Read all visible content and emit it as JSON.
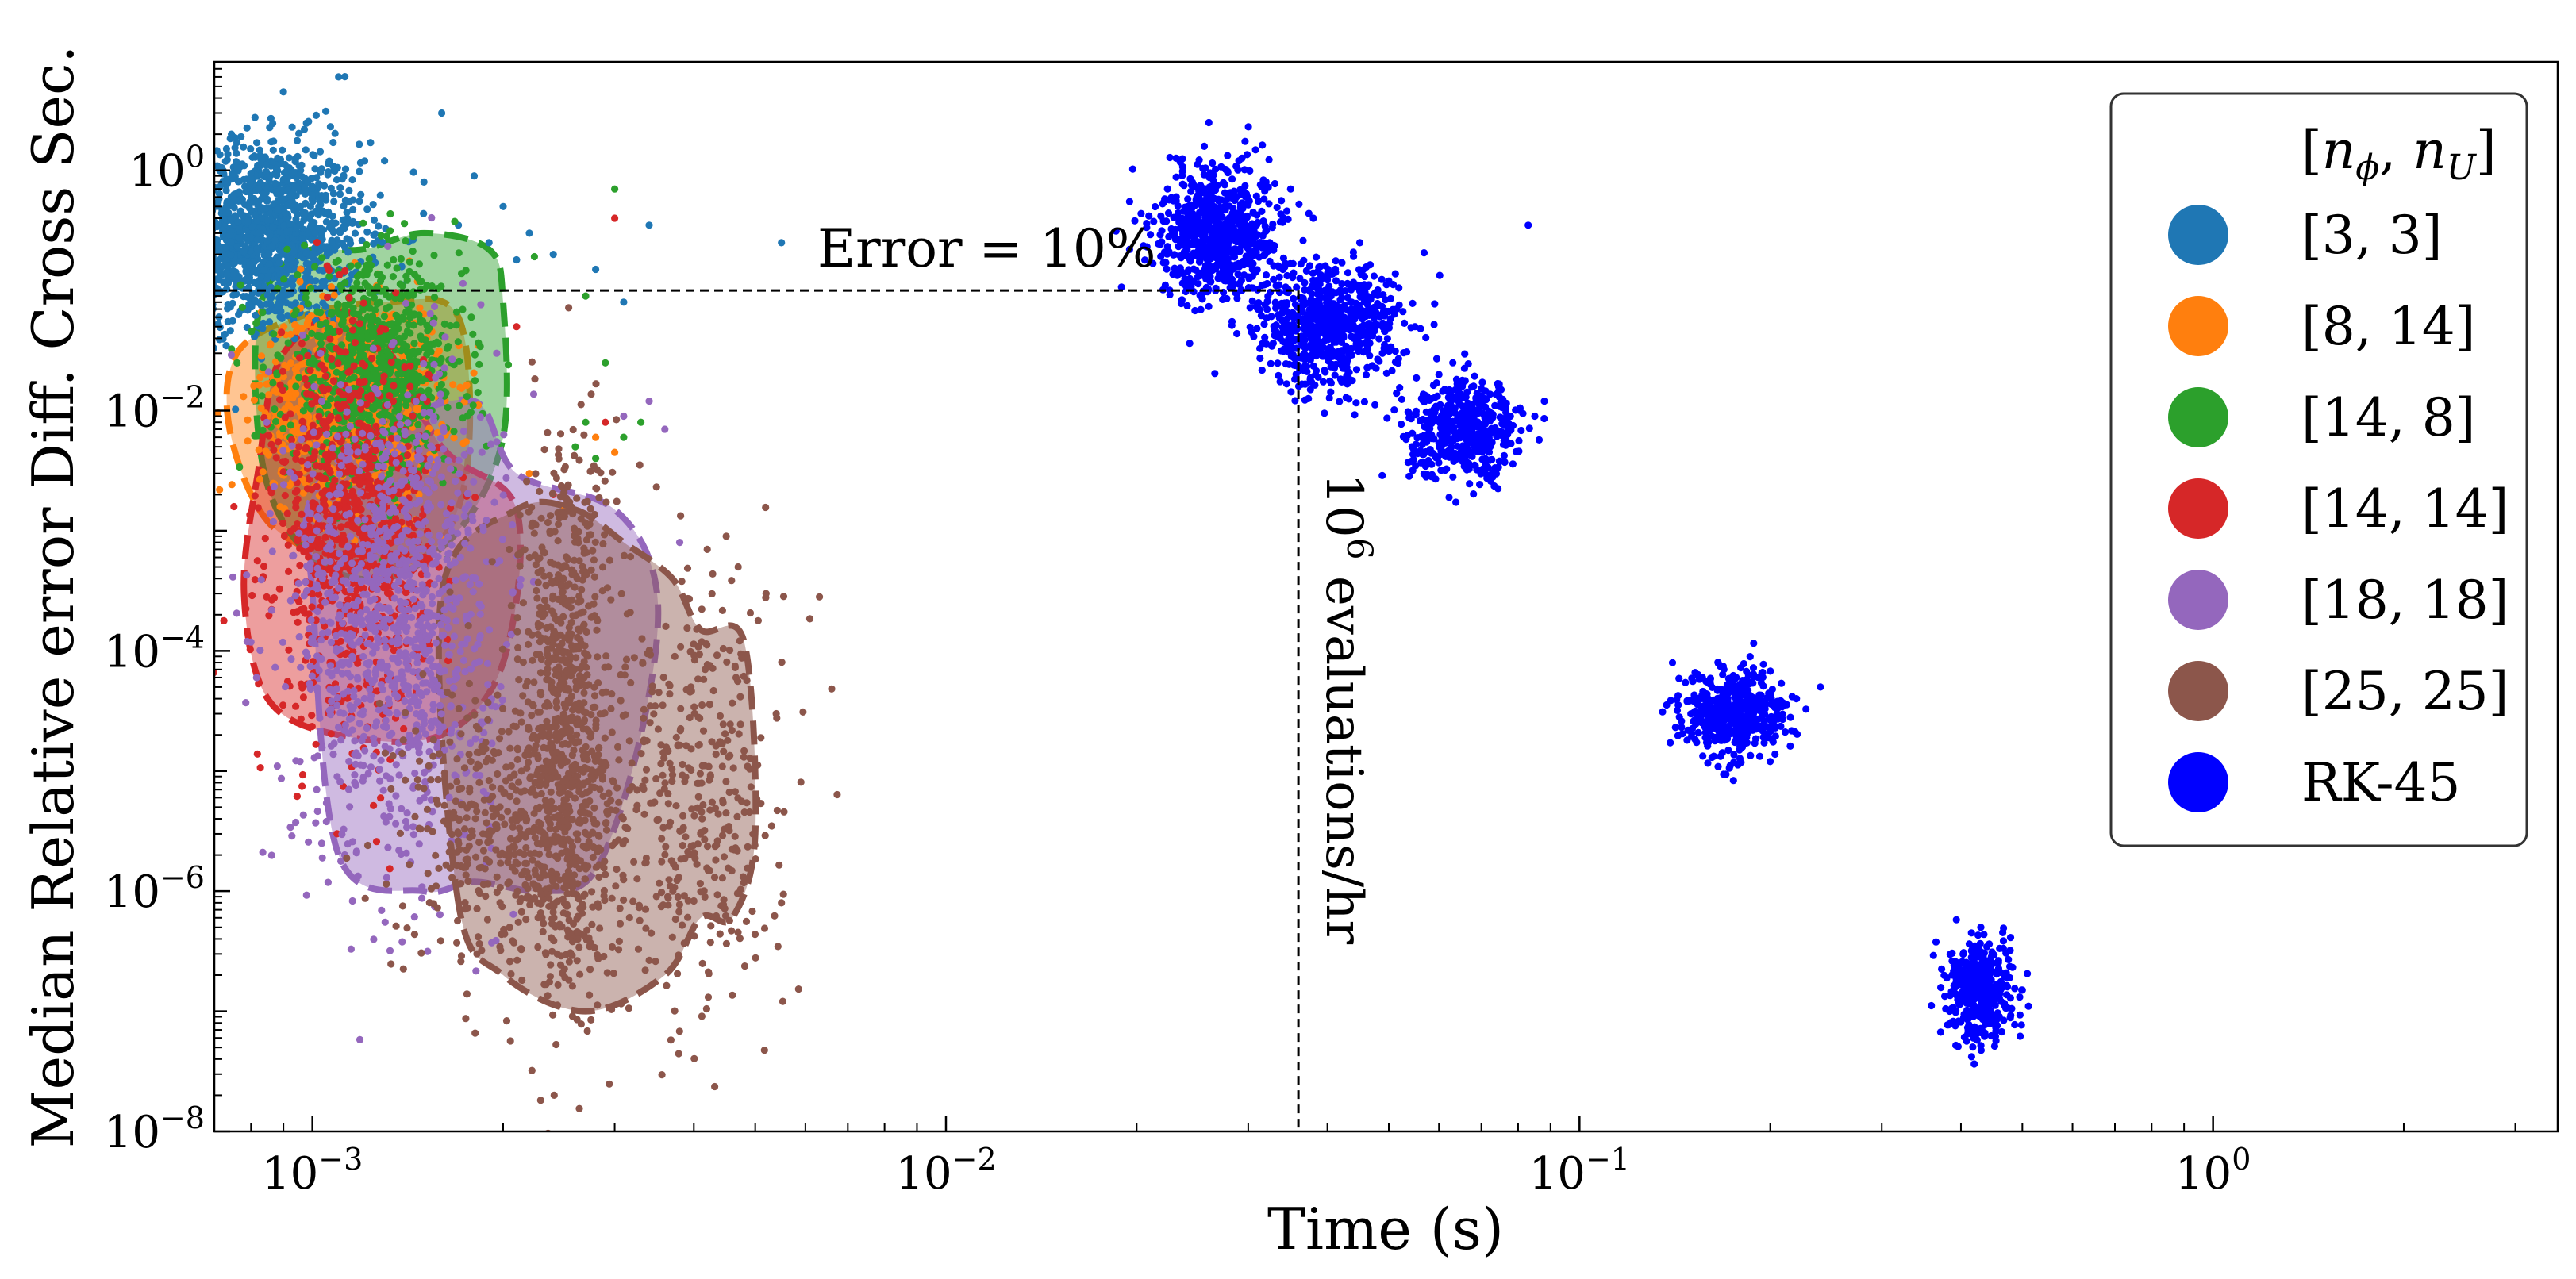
{
  "chart_data": {
    "type": "scatter",
    "title": "",
    "xlabel": "Time (s)",
    "ylabel": "Median Relative error Diff. Cross Sec.",
    "xscale": "log",
    "yscale": "log",
    "xlim": [
      0.0007,
      3.5
    ],
    "ylim": [
      1e-08,
      8
    ],
    "x_ticks": [
      {
        "value": 0.001,
        "base": "10",
        "exp": "−3"
      },
      {
        "value": 0.01,
        "base": "10",
        "exp": "−2"
      },
      {
        "value": 0.1,
        "base": "10",
        "exp": "−1"
      },
      {
        "value": 1,
        "base": "10",
        "exp": "0"
      }
    ],
    "y_ticks": [
      {
        "value": 1,
        "base": "10",
        "exp": "0"
      },
      {
        "value": 0.01,
        "base": "10",
        "exp": "−2"
      },
      {
        "value": 0.0001,
        "base": "10",
        "exp": "−4"
      },
      {
        "value": 1e-06,
        "base": "10",
        "exp": "−6"
      },
      {
        "value": 1e-08,
        "base": "10",
        "exp": "−8"
      }
    ],
    "grid": false,
    "legend": {
      "placement": "top-right",
      "title": "[n_φ, n_U]",
      "title_parts": {
        "open": "[",
        "n1": "n",
        "s1": "ϕ",
        "sep": ", ",
        "n2": "n",
        "s2": "U",
        "close": "]"
      }
    },
    "annotations": {
      "error_text": "Error = 10%",
      "error_value": 0.1,
      "rate_base": "10",
      "rate_exp": "6",
      "rate_text": " evaluations/hr",
      "rate_time": 0.036
    },
    "series": [
      {
        "name": "[3, 3]",
        "color": "#1f77b4",
        "clusters": [
          {
            "x": 0.00083,
            "y": 0.3,
            "sx": 0.08,
            "sy": 0.38,
            "n": 1400
          }
        ],
        "outliers": [
          [
            0.0009,
            4.5
          ],
          [
            0.00105,
            3.1
          ],
          [
            0.0011,
            6.0
          ],
          [
            0.0013,
            1.2
          ],
          [
            0.0015,
            0.8
          ],
          [
            0.0016,
            3.0
          ],
          [
            0.0017,
            0.35
          ],
          [
            0.0018,
            0.9
          ],
          [
            0.0019,
            0.25
          ],
          [
            0.002,
            0.5
          ],
          [
            0.0021,
            0.18
          ],
          [
            0.0022,
            0.3
          ],
          [
            0.0024,
            0.2
          ],
          [
            0.0028,
            0.15
          ],
          [
            0.0031,
            0.08
          ],
          [
            0.0034,
            0.35
          ],
          [
            0.0055,
            0.25
          ]
        ],
        "region": null
      },
      {
        "name": "[8, 14]",
        "color": "#ff7f0e",
        "clusters": [
          {
            "x": 0.00115,
            "y": 0.012,
            "sx": 0.07,
            "sy": 0.4,
            "n": 900
          }
        ],
        "outliers": [
          [
            0.0022,
            0.003
          ],
          [
            0.0025,
            0.0015
          ],
          [
            0.0028,
            0.006
          ],
          [
            0.003,
            0.0045
          ]
        ],
        "region": {
          "path": [
            [
              0.00074,
              0.007
            ],
            [
              0.00076,
              0.03
            ],
            [
              0.00095,
              0.06
            ],
            [
              0.0013,
              0.08
            ],
            [
              0.0017,
              0.06
            ],
            [
              0.00175,
              0.003
            ],
            [
              0.0015,
              0.0006
            ],
            [
              0.0011,
              0.0006
            ],
            [
              0.00085,
              0.0012
            ]
          ]
        }
      },
      {
        "name": "[14, 8]",
        "color": "#2ca02c",
        "clusters": [
          {
            "x": 0.00125,
            "y": 0.02,
            "sx": 0.07,
            "sy": 0.45,
            "n": 900
          }
        ],
        "outliers": [
          [
            0.0026,
            0.005
          ],
          [
            0.0027,
            0.008
          ],
          [
            0.0028,
            0.004
          ],
          [
            0.0029,
            0.025
          ],
          [
            0.003,
            0.7
          ],
          [
            0.0031,
            0.006
          ],
          [
            0.0033,
            0.008
          ],
          [
            0.0027,
            0.09
          ]
        ],
        "region": {
          "path": [
            [
              0.00084,
              0.003
            ],
            [
              0.00082,
              0.06
            ],
            [
              0.00095,
              0.2
            ],
            [
              0.0012,
              0.22
            ],
            [
              0.0015,
              0.3
            ],
            [
              0.0019,
              0.22
            ],
            [
              0.002,
              0.08
            ],
            [
              0.002,
              0.006
            ],
            [
              0.0017,
              0.001
            ],
            [
              0.0013,
              0.0004
            ],
            [
              0.001,
              0.0006
            ]
          ]
        }
      },
      {
        "name": "[14, 14]",
        "color": "#d62728",
        "clusters": [
          {
            "x": 0.00115,
            "y": 0.001,
            "sx": 0.06,
            "sy": 0.8,
            "n": 900
          }
        ],
        "outliers": [
          [
            0.0021,
            0.05
          ],
          [
            0.0024,
            0.002
          ],
          [
            0.0026,
            0.001
          ],
          [
            0.003,
            0.4
          ],
          [
            0.0029,
            0.008
          ]
        ],
        "region": {
          "path": [
            [
              0.00078,
              0.0003
            ],
            [
              0.00082,
              0.003
            ],
            [
              0.0009,
              0.03
            ],
            [
              0.0012,
              0.06
            ],
            [
              0.0016,
              0.005
            ],
            [
              0.0021,
              0.0015
            ],
            [
              0.002,
              8e-05
            ],
            [
              0.0016,
              2e-05
            ],
            [
              0.0011,
              2e-05
            ],
            [
              0.00085,
              4e-05
            ]
          ]
        }
      },
      {
        "name": "[18, 18]",
        "color": "#9467bd",
        "clusters": [
          {
            "x": 0.00135,
            "y": 0.0002,
            "sx": 0.08,
            "sy": 1.0,
            "n": 1100
          }
        ],
        "outliers": [
          [
            0.0034,
            0.012
          ],
          [
            0.0036,
            0.007
          ],
          [
            0.0031,
            0.009
          ],
          [
            0.0038,
            0.0008
          ]
        ],
        "region": {
          "path": [
            [
              0.001,
              0.0003
            ],
            [
              0.001,
              0.002
            ],
            [
              0.0013,
              0.007
            ],
            [
              0.0018,
              0.012
            ],
            [
              0.0021,
              0.003
            ],
            [
              0.003,
              0.0015
            ],
            [
              0.0035,
              0.0003
            ],
            [
              0.0033,
              2e-05
            ],
            [
              0.0028,
              1.5e-06
            ],
            [
              0.0023,
              1e-06
            ],
            [
              0.0018,
              1.2e-06
            ],
            [
              0.0015,
              1e-06
            ],
            [
              0.0011,
              2e-06
            ]
          ]
        }
      },
      {
        "name": "[25, 25]",
        "color": "#8c564b",
        "clusters": [
          {
            "x": 0.0025,
            "y": 3e-05,
            "sx": 0.035,
            "sy": 1.15,
            "n": 800
          },
          {
            "x": 0.0021,
            "y": 3e-06,
            "sx": 0.09,
            "sy": 0.6,
            "n": 500
          },
          {
            "x": 0.004,
            "y": 5e-06,
            "sx": 0.07,
            "sy": 0.9,
            "n": 400
          }
        ],
        "outliers": [
          [
            0.0042,
            0.0007
          ],
          [
            0.0045,
            0.0009
          ],
          [
            0.0047,
            0.0005
          ],
          [
            0.0052,
            0.0003
          ],
          [
            0.0055,
            8e-07
          ]
        ],
        "region": {
          "path": [
            [
              0.0017,
              8e-07
            ],
            [
              0.0016,
              0.0003
            ],
            [
              0.0021,
              0.0015
            ],
            [
              0.0026,
              0.0015
            ],
            [
              0.0031,
              0.0008
            ],
            [
              0.0037,
              0.0004
            ],
            [
              0.0041,
              0.00015
            ],
            [
              0.0048,
              0.00012
            ],
            [
              0.005,
              3e-06
            ],
            [
              0.0046,
              6e-07
            ],
            [
              0.0041,
              6e-07
            ],
            [
              0.0036,
              2e-07
            ],
            [
              0.0027,
              1e-07
            ],
            [
              0.002,
              2e-07
            ]
          ]
        }
      },
      {
        "name": "RK-45",
        "color": "#0000ff",
        "clusters": [
          {
            "x": 0.027,
            "y": 0.3,
            "sx": 0.05,
            "sy": 0.28,
            "n": 700
          },
          {
            "x": 0.04,
            "y": 0.05,
            "sx": 0.055,
            "sy": 0.25,
            "n": 700
          },
          {
            "x": 0.066,
            "y": 0.007,
            "sx": 0.045,
            "sy": 0.2,
            "n": 500
          },
          {
            "x": 0.175,
            "y": 3e-05,
            "sx": 0.04,
            "sy": 0.18,
            "n": 500
          },
          {
            "x": 0.43,
            "y": 1.5e-07,
            "sx": 0.025,
            "sy": 0.2,
            "n": 450
          }
        ],
        "outliers": [
          [
            0.026,
            2.5
          ],
          [
            0.029,
            1.2
          ],
          [
            0.032,
            0.8
          ],
          [
            0.035,
            0.7
          ],
          [
            0.038,
            0.4
          ],
          [
            0.045,
            0.25
          ],
          [
            0.05,
            0.12
          ],
          [
            0.055,
            0.05
          ],
          [
            0.083,
            0.35
          ],
          [
            0.06,
            0.02
          ],
          [
            0.085,
            0.009
          ],
          [
            0.088,
            0.012
          ],
          [
            0.2,
            1.2e-05
          ],
          [
            0.22,
            4e-05
          ],
          [
            0.24,
            5e-05
          ],
          [
            0.43,
            5e-07
          ],
          [
            0.5,
            1.5e-07
          ]
        ],
        "region": null
      }
    ]
  }
}
